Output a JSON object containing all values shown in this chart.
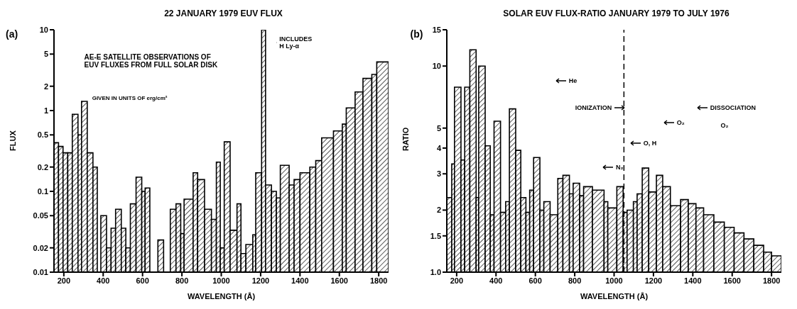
{
  "chart_data": [
    {
      "type": "histogram",
      "title": "22 JANUARY 1979 EUV FLUX",
      "xlabel": "WAVELENGTH (Å)",
      "ylabel": "FLUX",
      "color": "#000000",
      "log": "y",
      "bins": [
        150,
        173,
        196,
        220,
        243,
        272,
        290,
        319,
        348,
        370,
        388,
        417,
        440,
        463,
        492,
        515,
        538,
        567,
        596,
        613,
        637,
        678,
        707,
        741,
        770,
        794,
        811,
        857,
        880,
        915,
        950,
        975,
        995,
        1015,
        1045,
        1080,
        1100,
        1125,
        1160,
        1175,
        1205,
        1225,
        1255,
        1280,
        1300,
        1345,
        1370,
        1400,
        1450,
        1480,
        1510,
        1570,
        1615,
        1635,
        1680,
        1720,
        1765,
        1790,
        1850
      ],
      "values": [
        0.4,
        0.36,
        0.3,
        0.3,
        0.9,
        0.5,
        1.3,
        0.3,
        0.2,
        0.01,
        0.05,
        0.02,
        0.035,
        0.06,
        0.035,
        0.02,
        0.07,
        0.15,
        0.1,
        0.11,
        0.01,
        0.025,
        0.01,
        0.06,
        0.07,
        0.03,
        0.08,
        0.17,
        0.14,
        0.06,
        0.045,
        0.23,
        0.02,
        0.41,
        0.033,
        0.07,
        0.017,
        0.022,
        0.029,
        0.17,
        10,
        0.12,
        0.1,
        0.083,
        0.21,
        0.12,
        0.14,
        0.17,
        0.2,
        0.24,
        0.46,
        0.56,
        0.68,
        1.08,
        1.7,
        2.5,
        2.8,
        4.0
      ],
      "xlim": [
        150,
        1850
      ],
      "xticks": [
        200,
        400,
        600,
        800,
        1000,
        1200,
        1400,
        1600,
        1800
      ],
      "ylim": [
        0.01,
        10
      ],
      "yticks": [
        0.01,
        0.02,
        0.05,
        0.1,
        0.2,
        0.5,
        1,
        2,
        5,
        10
      ],
      "annotations": [
        "(a)",
        "AE-E SATELLITE OBSERVATIONS OF EUV FLUXES FROM FULL SOLAR DISK",
        "GIVEN IN UNITS OF erg/cm²",
        "INCLUDES H Ly-α"
      ]
    },
    {
      "type": "histogram",
      "title": "SOLAR EUV FLUX-RATIO JANUARY 1979 TO JULY 1976",
      "xlabel": "WAVELENGTH (Å)",
      "ylabel": "RATIO",
      "color": "#000000",
      "log": "y",
      "bins": [
        150,
        175,
        189,
        222,
        241,
        267,
        299,
        312,
        345,
        371,
        390,
        423,
        449,
        468,
        500,
        526,
        552,
        571,
        591,
        623,
        643,
        675,
        714,
        740,
        773,
        792,
        825,
        845,
        890,
        949,
        968,
        1014,
        1046,
        1066,
        1098,
        1117,
        1143,
        1176,
        1215,
        1247,
        1286,
        1338,
        1377,
        1416,
        1455,
        1507,
        1560,
        1610,
        1660,
        1710,
        1760,
        1800,
        1850
      ],
      "values": [
        2.3,
        3.35,
        7.9,
        3.5,
        7.9,
        12,
        2.3,
        10,
        4.1,
        1.9,
        5.4,
        1.95,
        2.2,
        6.2,
        3.9,
        2.3,
        1.95,
        2.5,
        3.6,
        2.0,
        2.2,
        1.9,
        2.85,
        2.95,
        2.4,
        2.7,
        2.35,
        2.6,
        2.5,
        2.2,
        2.05,
        2.6,
        1.95,
        2.0,
        2.2,
        2.4,
        3.2,
        2.45,
        2.95,
        2.6,
        2.1,
        2.25,
        2.15,
        2.05,
        1.9,
        1.75,
        1.65,
        1.55,
        1.45,
        1.35,
        1.25,
        1.2
      ],
      "xlim": [
        150,
        1850
      ],
      "xticks": [
        200,
        400,
        600,
        800,
        1000,
        1200,
        1400,
        1600,
        1800
      ],
      "ylim": [
        1,
        15
      ],
      "yticks": [
        {
          "value": 1,
          "label": "1.0"
        },
        1.5,
        2,
        3,
        4,
        5,
        10,
        15
      ],
      "ref_lines": [
        {
          "axis": "x",
          "value": 1050,
          "line_style": "dashed"
        }
      ],
      "annotations": [
        "(b)",
        "He",
        "N₂",
        "O, H",
        "O₂",
        "IONIZATION",
        "DISSOCIATION",
        "O₂"
      ]
    }
  ]
}
